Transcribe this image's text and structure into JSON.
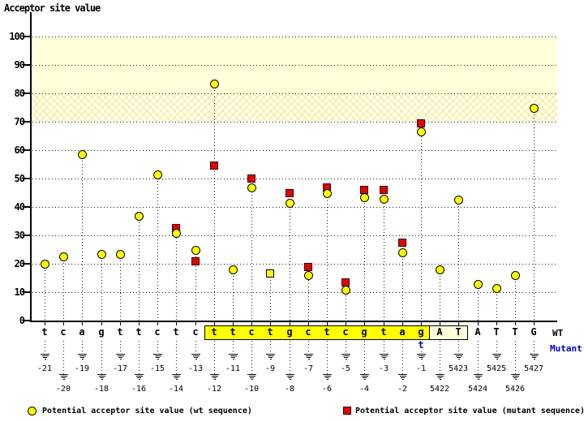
{
  "title": "Acceptor site value",
  "row_labels": {
    "wt": "WT",
    "mutant": "Mutant"
  },
  "legend": {
    "wt_label": "Potential acceptor site value (wt sequence)",
    "mutant_label": "Potential acceptor site value (mutant sequence)"
  },
  "axis": {
    "y_ticks": [
      100,
      90,
      80,
      70,
      60,
      50,
      40,
      30,
      20,
      10,
      0
    ]
  },
  "colors": {
    "wt_marker_fill": "#ffff00",
    "mutant_marker_fill": "#dd0505",
    "band_solid_fill": "#ffffd9",
    "highlight_box_fill": "#ffff00",
    "outlined_box_fill": "#ffffd9",
    "mutant_text": "#0000bb"
  },
  "chart_data": {
    "type": "scatter",
    "title": "Acceptor site value",
    "ylabel": "Acceptor site value",
    "xlabel": "",
    "ylim": [
      0,
      100
    ],
    "ytick_step": 10,
    "grid": "horizontal-dotted",
    "legend_position": "bottom",
    "bands": [
      {
        "from": 80,
        "to": 100,
        "style": "solid"
      },
      {
        "from": 70,
        "to": 80,
        "style": "crosshatch"
      }
    ],
    "categories": [
      "-21",
      "-20",
      "-19",
      "-18",
      "-17",
      "-16",
      "-15",
      "-14",
      "-13",
      "-12",
      "-11",
      "-10",
      "-9",
      "-8",
      "-7",
      "-6",
      "-5",
      "-4",
      "-3",
      "-2",
      "-1",
      "5422",
      "5423",
      "5424",
      "5425",
      "5426",
      "5427"
    ],
    "sequence_wt": [
      "t",
      "c",
      "a",
      "g",
      "t",
      "t",
      "c",
      "t",
      "c",
      "t",
      "t",
      "c",
      "t",
      "g",
      "c",
      "t",
      "c",
      "g",
      "t",
      "a",
      "g",
      "A",
      "T",
      "A",
      "T",
      "T",
      "G"
    ],
    "mutant_change": {
      "category": "-1",
      "base": "t"
    },
    "highlights": {
      "yellow_box": {
        "from": "-12",
        "to": "-1"
      },
      "outlined_box": {
        "from": "5422",
        "to": "5423"
      }
    },
    "series": [
      {
        "name": "Potential acceptor site value (wt sequence)",
        "marker": "yellow-circle",
        "values": [
          20,
          22.5,
          58.5,
          23.5,
          23.5,
          37,
          51.5,
          31,
          25,
          83.5,
          18,
          47,
          16.5,
          41.5,
          16,
          45,
          11,
          43.5,
          43,
          24,
          66.5,
          18,
          42.5,
          13,
          11.5,
          16,
          75
        ]
      },
      {
        "name": "Potential acceptor site value (mutant sequence)",
        "marker": "red-square",
        "values": [
          null,
          null,
          null,
          null,
          null,
          null,
          null,
          32.5,
          21,
          54.5,
          null,
          50,
          16.5,
          45,
          19,
          47,
          13.5,
          46,
          46,
          27.5,
          69.5,
          null,
          null,
          null,
          null,
          null,
          null
        ]
      }
    ]
  }
}
